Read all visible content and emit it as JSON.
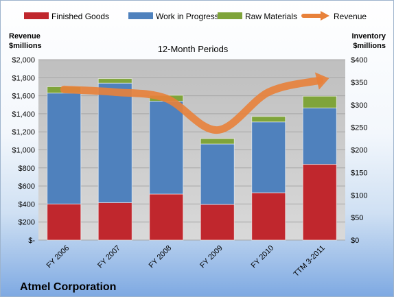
{
  "chart_data": {
    "type": "bar",
    "stacked": true,
    "subtitle": "12-Month Periods",
    "company": "Atmel Corporation",
    "categories": [
      "FY 2006",
      "FY 2007",
      "FY 2008",
      "FY 2009",
      "FY 2010",
      "TTM 3-2011"
    ],
    "left_axis": {
      "title": [
        "Revenue",
        "$millions"
      ],
      "ylim": [
        0,
        2000
      ],
      "ticks": [
        0,
        200,
        400,
        600,
        800,
        1000,
        1200,
        1400,
        1600,
        1800,
        2000
      ],
      "tick_labels": [
        "$-",
        "$200",
        "$400",
        "$600",
        "$800",
        "$1,000",
        "$1,200",
        "$1,400",
        "$1,600",
        "$1,800",
        "$2,000"
      ]
    },
    "right_axis": {
      "title": [
        "Inventory",
        "$millions"
      ],
      "ylim": [
        0,
        400
      ],
      "ticks": [
        0,
        50,
        100,
        150,
        200,
        250,
        300,
        350,
        400
      ],
      "tick_labels": [
        "$0",
        "$50",
        "$100",
        "$150",
        "$200",
        "$250",
        "$300",
        "$350",
        "$400"
      ]
    },
    "series": [
      {
        "name": "Finished Goods",
        "axis": "right",
        "kind": "bar",
        "color": "#c0272d",
        "values": [
          80,
          83,
          102,
          79,
          105,
          168
        ]
      },
      {
        "name": "Work in Progress",
        "axis": "right",
        "kind": "bar",
        "color": "#4f81bd",
        "values": [
          246,
          265,
          206,
          134,
          157,
          125
        ]
      },
      {
        "name": "Raw Materials",
        "axis": "right",
        "kind": "bar",
        "color": "#7fa43a",
        "values": [
          14,
          10,
          13,
          12,
          12,
          26
        ]
      },
      {
        "name": "Revenue",
        "axis": "left",
        "kind": "line",
        "color": "#e8813a",
        "values": [
          1670,
          1640,
          1570,
          1220,
          1640,
          1770
        ]
      }
    ],
    "grid": true,
    "legend_position": "top"
  }
}
